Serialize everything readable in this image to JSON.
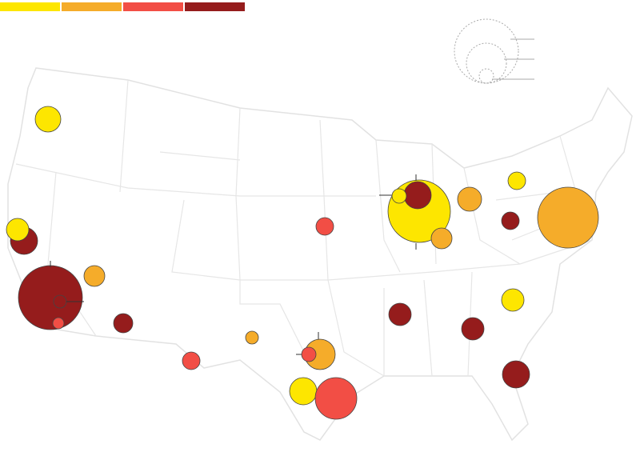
{
  "legend": {
    "colors": [
      "#fde600",
      "#f5ac2a",
      "#f24e45",
      "#951c1c"
    ]
  },
  "bubbles": [
    {
      "size": 16,
      "color": 0
    },
    {
      "size": 17,
      "color": 3
    },
    {
      "size": 14,
      "color": 0
    },
    {
      "size": 40,
      "color": 3
    },
    {
      "size": 8,
      "color": 3
    },
    {
      "size": 7,
      "color": 2
    },
    {
      "size": 13,
      "color": 1
    },
    {
      "size": 12,
      "color": 3
    },
    {
      "size": 11,
      "color": 2
    },
    {
      "size": 8,
      "color": 1
    },
    {
      "size": 19,
      "color": 1
    },
    {
      "size": 9,
      "color": 2
    },
    {
      "size": 17,
      "color": 0
    },
    {
      "size": 26,
      "color": 2
    },
    {
      "size": 11,
      "color": 2
    },
    {
      "size": 14,
      "color": 3
    },
    {
      "size": 39,
      "color": 0
    },
    {
      "size": 17,
      "color": 3
    },
    {
      "size": 9,
      "color": 0
    },
    {
      "size": 13,
      "color": 1
    },
    {
      "size": 15,
      "color": 1
    },
    {
      "size": 11,
      "color": 0
    },
    {
      "size": 11,
      "color": 3
    },
    {
      "size": 38,
      "color": 1
    },
    {
      "size": 14,
      "color": 0
    },
    {
      "size": 14,
      "color": 3
    },
    {
      "size": 17,
      "color": 3
    }
  ]
}
